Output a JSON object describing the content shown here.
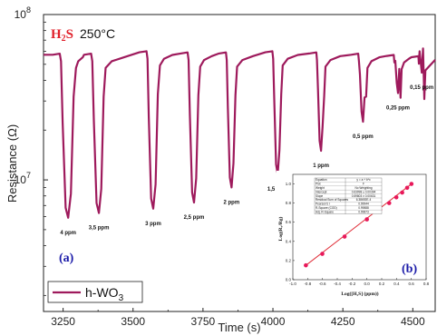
{
  "chart_data": [
    {
      "type": "line",
      "panel_tag": "(a)",
      "gas_label": "H2S",
      "gas_label_main": "H",
      "gas_label_sub": "2",
      "gas_label_tail": "S",
      "temperature_label": "250°C",
      "xlabel": "Time (s)",
      "ylabel": "Resistance (Ω)",
      "xlim": [
        3180,
        4580
      ],
      "ylim": [
        1600000,
        100000000
      ],
      "yscale": "log",
      "x_ticks": [
        3250,
        3500,
        3750,
        4000,
        4250,
        4500
      ],
      "y_tick_labels": [
        {
          "value": 10000000,
          "base": "10",
          "exp": "7"
        },
        {
          "value": 100000000,
          "base": "10",
          "exp": "8"
        }
      ],
      "legend": {
        "main": "h-WO",
        "sub": "3",
        "placement": "bottom-left"
      },
      "series": [
        {
          "name": "h-WO3",
          "color": "#9e1a5c",
          "pulses": [
            {
              "label": "4 ppm",
              "concentration": 4,
              "start": 3238,
              "min_time": 3268,
              "recover": 3296,
              "baseline": 58000000,
              "min_resistance": 5900000
            },
            {
              "label": "3,5 ppm",
              "concentration": 3.5,
              "start": 3350,
              "min_time": 3378,
              "recover": 3402,
              "baseline": 58000000,
              "min_resistance": 6300000
            },
            {
              "label": "3 ppm",
              "concentration": 3,
              "start": 3548,
              "min_time": 3572,
              "recover": 3596,
              "baseline": 60000000,
              "min_resistance": 6700000
            },
            {
              "label": "2,5 ppm",
              "concentration": 2.5,
              "start": 3695,
              "min_time": 3718,
              "recover": 3740,
              "baseline": 59000000,
              "min_resistance": 7300000
            },
            {
              "label": "2 ppm",
              "concentration": 2,
              "start": 3832,
              "min_time": 3852,
              "recover": 3872,
              "baseline": 59000000,
              "min_resistance": 9000000
            },
            {
              "label": "1,5 ppm",
              "concentration": 1.5,
              "start": 3998,
              "min_time": 4017,
              "recover": 4035,
              "baseline": 60000000,
              "min_resistance": 10800000
            },
            {
              "label": "1 ppm",
              "concentration": 1,
              "start": 4155,
              "min_time": 4172,
              "recover": 4188,
              "baseline": 59000000,
              "min_resistance": 15000000
            },
            {
              "label": "0,5 ppm",
              "concentration": 0.5,
              "start": 4305,
              "min_time": 4322,
              "recover": 4338,
              "baseline": 58000000,
              "min_resistance": 22500000
            },
            {
              "label": "0,25 ppm",
              "concentration": 0.25,
              "start": 4432,
              "min_time": 4447,
              "recover": 4460,
              "baseline": 57000000,
              "min_resistance": 33500000
            },
            {
              "label": "0,15 ppm",
              "concentration": 0.15,
              "start": 4520,
              "min_time": 4532,
              "recover": 4545,
              "baseline": 56000000,
              "min_resistance": 44500000
            }
          ]
        }
      ]
    },
    {
      "type": "scatter",
      "panel_tag": "(b)",
      "xlabel": "Log([H₂S] (ppm))",
      "ylabel": "Log(Rₐ/Rg)",
      "xlim": [
        -1.0,
        0.8
      ],
      "ylim": [
        0.0,
        1.1
      ],
      "x_ticks": [
        -1.0,
        -0.8,
        -0.6,
        -0.4,
        -0.2,
        0.0,
        0.2,
        0.4,
        0.6,
        0.8
      ],
      "y_ticks": [
        0.0,
        0.2,
        0.4,
        0.6,
        0.8,
        1.0
      ],
      "points": {
        "x": [
          -0.824,
          -0.602,
          -0.301,
          0.0,
          0.176,
          0.301,
          0.398,
          0.477,
          0.544,
          0.602
        ],
        "y": [
          0.15,
          0.27,
          0.45,
          0.63,
          0.73,
          0.8,
          0.86,
          0.91,
          0.96,
          1.0
        ]
      },
      "fit": {
        "x": [
          -0.824,
          0.602
        ],
        "y": [
          0.15,
          1.0
        ]
      },
      "marker_color": "#e8185a",
      "fit_color": "#e0303a",
      "fit_table": [
        [
          "Equation",
          "y = a + b*x"
        ],
        [
          "Plot",
          "F"
        ],
        [
          "Weight",
          "No Weighting"
        ],
        [
          "Intercept",
          "0.63998 ± 0.00394"
        ],
        [
          "Slope",
          "0.59803 ± 0.00631"
        ],
        [
          "Residual Sum of Squares",
          "6.38692E-4"
        ],
        [
          "Pearson's r",
          "0.99944"
        ],
        [
          "R-Square (COD)",
          "0.99888"
        ],
        [
          "Adj. R-Square",
          "0.99873"
        ]
      ]
    }
  ]
}
